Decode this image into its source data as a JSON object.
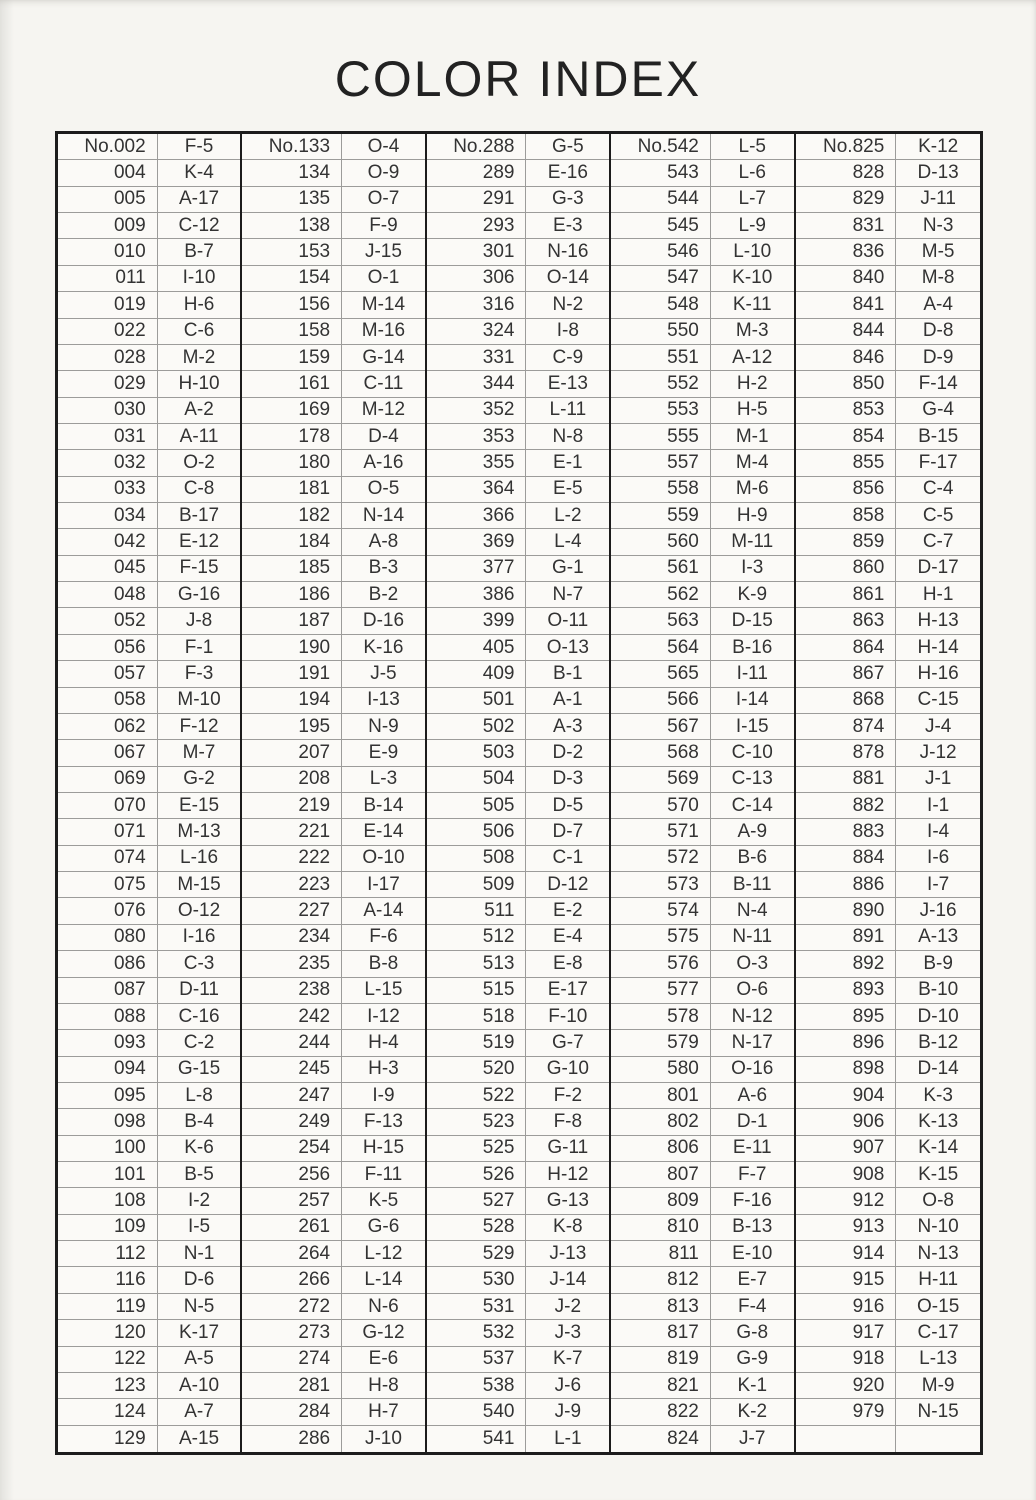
{
  "title": "COLOR INDEX",
  "palette": {
    "paper": "#f6f5f1",
    "ink": "#2b2b2b",
    "grid_thin": "#9c9c9a",
    "grid_thick": "#1c1c1c"
  },
  "table": {
    "groups": [
      {
        "rows": [
          [
            "No.002",
            "F-5"
          ],
          [
            "004",
            "K-4"
          ],
          [
            "005",
            "A-17"
          ],
          [
            "009",
            "C-12"
          ],
          [
            "010",
            "B-7"
          ],
          [
            "011",
            "I-10"
          ],
          [
            "019",
            "H-6"
          ],
          [
            "022",
            "C-6"
          ],
          [
            "028",
            "M-2"
          ],
          [
            "029",
            "H-10"
          ],
          [
            "030",
            "A-2"
          ],
          [
            "031",
            "A-11"
          ],
          [
            "032",
            "O-2"
          ],
          [
            "033",
            "C-8"
          ],
          [
            "034",
            "B-17"
          ],
          [
            "042",
            "E-12"
          ],
          [
            "045",
            "F-15"
          ],
          [
            "048",
            "G-16"
          ],
          [
            "052",
            "J-8"
          ],
          [
            "056",
            "F-1"
          ],
          [
            "057",
            "F-3"
          ],
          [
            "058",
            "M-10"
          ],
          [
            "062",
            "F-12"
          ],
          [
            "067",
            "M-7"
          ],
          [
            "069",
            "G-2"
          ],
          [
            "070",
            "E-15"
          ],
          [
            "071",
            "M-13"
          ],
          [
            "074",
            "L-16"
          ],
          [
            "075",
            "M-15"
          ],
          [
            "076",
            "O-12"
          ],
          [
            "080",
            "I-16"
          ],
          [
            "086",
            "C-3"
          ],
          [
            "087",
            "D-11"
          ],
          [
            "088",
            "C-16"
          ],
          [
            "093",
            "C-2"
          ],
          [
            "094",
            "G-15"
          ],
          [
            "095",
            "L-8"
          ],
          [
            "098",
            "B-4"
          ],
          [
            "100",
            "K-6"
          ],
          [
            "101",
            "B-5"
          ],
          [
            "108",
            "I-2"
          ],
          [
            "109",
            "I-5"
          ],
          [
            "112",
            "N-1"
          ],
          [
            "116",
            "D-6"
          ],
          [
            "119",
            "N-5"
          ],
          [
            "120",
            "K-17"
          ],
          [
            "122",
            "A-5"
          ],
          [
            "123",
            "A-10"
          ],
          [
            "124",
            "A-7"
          ],
          [
            "129",
            "A-15"
          ]
        ]
      },
      {
        "rows": [
          [
            "No.133",
            "O-4"
          ],
          [
            "134",
            "O-9"
          ],
          [
            "135",
            "O-7"
          ],
          [
            "138",
            "F-9"
          ],
          [
            "153",
            "J-15"
          ],
          [
            "154",
            "O-1"
          ],
          [
            "156",
            "M-14"
          ],
          [
            "158",
            "M-16"
          ],
          [
            "159",
            "G-14"
          ],
          [
            "161",
            "C-11"
          ],
          [
            "169",
            "M-12"
          ],
          [
            "178",
            "D-4"
          ],
          [
            "180",
            "A-16"
          ],
          [
            "181",
            "O-5"
          ],
          [
            "182",
            "N-14"
          ],
          [
            "184",
            "A-8"
          ],
          [
            "185",
            "B-3"
          ],
          [
            "186",
            "B-2"
          ],
          [
            "187",
            "D-16"
          ],
          [
            "190",
            "K-16"
          ],
          [
            "191",
            "J-5"
          ],
          [
            "194",
            "I-13"
          ],
          [
            "195",
            "N-9"
          ],
          [
            "207",
            "E-9"
          ],
          [
            "208",
            "L-3"
          ],
          [
            "219",
            "B-14"
          ],
          [
            "221",
            "E-14"
          ],
          [
            "222",
            "O-10"
          ],
          [
            "223",
            "I-17"
          ],
          [
            "227",
            "A-14"
          ],
          [
            "234",
            "F-6"
          ],
          [
            "235",
            "B-8"
          ],
          [
            "238",
            "L-15"
          ],
          [
            "242",
            "I-12"
          ],
          [
            "244",
            "H-4"
          ],
          [
            "245",
            "H-3"
          ],
          [
            "247",
            "I-9"
          ],
          [
            "249",
            "F-13"
          ],
          [
            "254",
            "H-15"
          ],
          [
            "256",
            "F-11"
          ],
          [
            "257",
            "K-5"
          ],
          [
            "261",
            "G-6"
          ],
          [
            "264",
            "L-12"
          ],
          [
            "266",
            "L-14"
          ],
          [
            "272",
            "N-6"
          ],
          [
            "273",
            "G-12"
          ],
          [
            "274",
            "E-6"
          ],
          [
            "281",
            "H-8"
          ],
          [
            "284",
            "H-7"
          ],
          [
            "286",
            "J-10"
          ]
        ]
      },
      {
        "rows": [
          [
            "No.288",
            "G-5"
          ],
          [
            "289",
            "E-16"
          ],
          [
            "291",
            "G-3"
          ],
          [
            "293",
            "E-3"
          ],
          [
            "301",
            "N-16"
          ],
          [
            "306",
            "O-14"
          ],
          [
            "316",
            "N-2"
          ],
          [
            "324",
            "I-8"
          ],
          [
            "331",
            "C-9"
          ],
          [
            "344",
            "E-13"
          ],
          [
            "352",
            "L-11"
          ],
          [
            "353",
            "N-8"
          ],
          [
            "355",
            "E-1"
          ],
          [
            "364",
            "E-5"
          ],
          [
            "366",
            "L-2"
          ],
          [
            "369",
            "L-4"
          ],
          [
            "377",
            "G-1"
          ],
          [
            "386",
            "N-7"
          ],
          [
            "399",
            "O-11"
          ],
          [
            "405",
            "O-13"
          ],
          [
            "409",
            "B-1"
          ],
          [
            "501",
            "A-1"
          ],
          [
            "502",
            "A-3"
          ],
          [
            "503",
            "D-2"
          ],
          [
            "504",
            "D-3"
          ],
          [
            "505",
            "D-5"
          ],
          [
            "506",
            "D-7"
          ],
          [
            "508",
            "C-1"
          ],
          [
            "509",
            "D-12"
          ],
          [
            "511",
            "E-2"
          ],
          [
            "512",
            "E-4"
          ],
          [
            "513",
            "E-8"
          ],
          [
            "515",
            "E-17"
          ],
          [
            "518",
            "F-10"
          ],
          [
            "519",
            "G-7"
          ],
          [
            "520",
            "G-10"
          ],
          [
            "522",
            "F-2"
          ],
          [
            "523",
            "F-8"
          ],
          [
            "525",
            "G-11"
          ],
          [
            "526",
            "H-12"
          ],
          [
            "527",
            "G-13"
          ],
          [
            "528",
            "K-8"
          ],
          [
            "529",
            "J-13"
          ],
          [
            "530",
            "J-14"
          ],
          [
            "531",
            "J-2"
          ],
          [
            "532",
            "J-3"
          ],
          [
            "537",
            "K-7"
          ],
          [
            "538",
            "J-6"
          ],
          [
            "540",
            "J-9"
          ],
          [
            "541",
            "L-1"
          ]
        ]
      },
      {
        "rows": [
          [
            "No.542",
            "L-5"
          ],
          [
            "543",
            "L-6"
          ],
          [
            "544",
            "L-7"
          ],
          [
            "545",
            "L-9"
          ],
          [
            "546",
            "L-10"
          ],
          [
            "547",
            "K-10"
          ],
          [
            "548",
            "K-11"
          ],
          [
            "550",
            "M-3"
          ],
          [
            "551",
            "A-12"
          ],
          [
            "552",
            "H-2"
          ],
          [
            "553",
            "H-5"
          ],
          [
            "555",
            "M-1"
          ],
          [
            "557",
            "M-4"
          ],
          [
            "558",
            "M-6"
          ],
          [
            "559",
            "H-9"
          ],
          [
            "560",
            "M-11"
          ],
          [
            "561",
            "I-3"
          ],
          [
            "562",
            "K-9"
          ],
          [
            "563",
            "D-15"
          ],
          [
            "564",
            "B-16"
          ],
          [
            "565",
            "I-11"
          ],
          [
            "566",
            "I-14"
          ],
          [
            "567",
            "I-15"
          ],
          [
            "568",
            "C-10"
          ],
          [
            "569",
            "C-13"
          ],
          [
            "570",
            "C-14"
          ],
          [
            "571",
            "A-9"
          ],
          [
            "572",
            "B-6"
          ],
          [
            "573",
            "B-11"
          ],
          [
            "574",
            "N-4"
          ],
          [
            "575",
            "N-11"
          ],
          [
            "576",
            "O-3"
          ],
          [
            "577",
            "O-6"
          ],
          [
            "578",
            "N-12"
          ],
          [
            "579",
            "N-17"
          ],
          [
            "580",
            "O-16"
          ],
          [
            "801",
            "A-6"
          ],
          [
            "802",
            "D-1"
          ],
          [
            "806",
            "E-11"
          ],
          [
            "807",
            "F-7"
          ],
          [
            "809",
            "F-16"
          ],
          [
            "810",
            "B-13"
          ],
          [
            "811",
            "E-10"
          ],
          [
            "812",
            "E-7"
          ],
          [
            "813",
            "F-4"
          ],
          [
            "817",
            "G-8"
          ],
          [
            "819",
            "G-9"
          ],
          [
            "821",
            "K-1"
          ],
          [
            "822",
            "K-2"
          ],
          [
            "824",
            "J-7"
          ]
        ]
      },
      {
        "rows": [
          [
            "No.825",
            "K-12"
          ],
          [
            "828",
            "D-13"
          ],
          [
            "829",
            "J-11"
          ],
          [
            "831",
            "N-3"
          ],
          [
            "836",
            "M-5"
          ],
          [
            "840",
            "M-8"
          ],
          [
            "841",
            "A-4"
          ],
          [
            "844",
            "D-8"
          ],
          [
            "846",
            "D-9"
          ],
          [
            "850",
            "F-14"
          ],
          [
            "853",
            "G-4"
          ],
          [
            "854",
            "B-15"
          ],
          [
            "855",
            "F-17"
          ],
          [
            "856",
            "C-4"
          ],
          [
            "858",
            "C-5"
          ],
          [
            "859",
            "C-7"
          ],
          [
            "860",
            "D-17"
          ],
          [
            "861",
            "H-1"
          ],
          [
            "863",
            "H-13"
          ],
          [
            "864",
            "H-14"
          ],
          [
            "867",
            "H-16"
          ],
          [
            "868",
            "C-15"
          ],
          [
            "874",
            "J-4"
          ],
          [
            "878",
            "J-12"
          ],
          [
            "881",
            "J-1"
          ],
          [
            "882",
            "I-1"
          ],
          [
            "883",
            "I-4"
          ],
          [
            "884",
            "I-6"
          ],
          [
            "886",
            "I-7"
          ],
          [
            "890",
            "J-16"
          ],
          [
            "891",
            "A-13"
          ],
          [
            "892",
            "B-9"
          ],
          [
            "893",
            "B-10"
          ],
          [
            "895",
            "D-10"
          ],
          [
            "896",
            "B-12"
          ],
          [
            "898",
            "D-14"
          ],
          [
            "904",
            "K-3"
          ],
          [
            "906",
            "K-13"
          ],
          [
            "907",
            "K-14"
          ],
          [
            "908",
            "K-15"
          ],
          [
            "912",
            "O-8"
          ],
          [
            "913",
            "N-10"
          ],
          [
            "914",
            "N-13"
          ],
          [
            "915",
            "H-11"
          ],
          [
            "916",
            "O-15"
          ],
          [
            "917",
            "C-17"
          ],
          [
            "918",
            "L-13"
          ],
          [
            "920",
            "M-9"
          ],
          [
            "979",
            "N-15"
          ],
          [
            "",
            ""
          ]
        ]
      }
    ]
  }
}
